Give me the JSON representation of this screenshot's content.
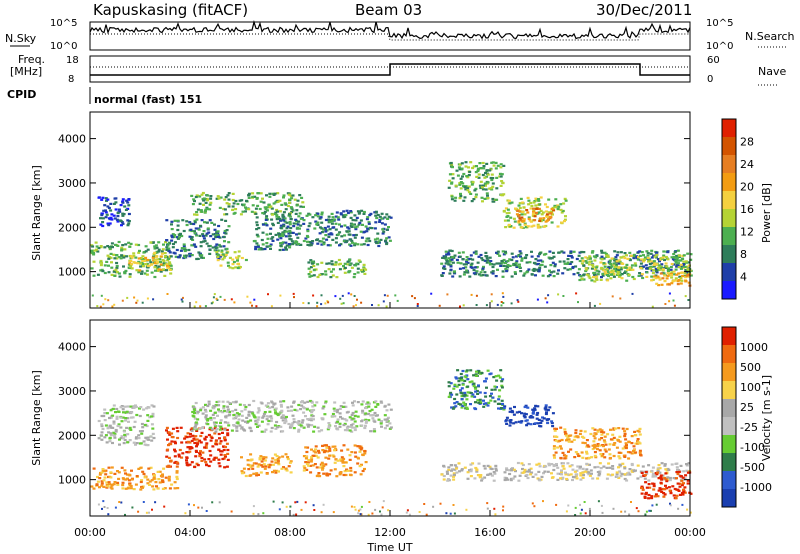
{
  "header": {
    "station": "Kapuskasing (fitACF)",
    "beam": "Beam 03",
    "date": "30/Dec/2011"
  },
  "top_panels": {
    "nsky_label": "N.Sky",
    "nsearch_label": "N.Search",
    "noise_ticks": [
      "10^5",
      "10^0"
    ],
    "freq_label": "Freq.",
    "freq_unit": "[MHz]",
    "freq_ticks": [
      "18",
      "8"
    ],
    "nave_label": "Nave",
    "nave_ticks": [
      "60",
      "0"
    ],
    "cpid_label": "CPID",
    "cpid_value": "normal (fast) 151"
  },
  "colors": {
    "power_scale": [
      "#1a1aff",
      "#1f3fa8",
      "#2e7d5a",
      "#4caf50",
      "#b5d334",
      "#f4d03f",
      "#f39c12",
      "#e67e22",
      "#d35400",
      "#e02000"
    ],
    "velocity_scale": [
      "#1a3fb0",
      "#2e5bd0",
      "#2f7d4a",
      "#66cc33",
      "#c0c0c0",
      "#a8a8a8",
      "#f7d24a",
      "#f59a1e",
      "#ef6a10",
      "#e02000"
    ]
  },
  "chart_data": [
    {
      "type": "heatmap",
      "name": "power",
      "ylabel": "Slant Range [km]",
      "ylim": [
        180,
        4600
      ],
      "yticks": [
        "1000",
        "2000",
        "3000",
        "4000"
      ],
      "colorbar_label": "Power [dB]",
      "colorbar_ticks": [
        "4",
        "8",
        "12",
        "16",
        "20",
        "24",
        "28"
      ],
      "colorbar_range": [
        0,
        32
      ],
      "xlim": [
        0,
        24
      ],
      "regions": [
        {
          "x": [
            0,
            3.2
          ],
          "y": [
            900,
            1700
          ],
          "level": 3
        },
        {
          "x": [
            0.3,
            1.6
          ],
          "y": [
            2000,
            2700
          ],
          "level": 1
        },
        {
          "x": [
            1.5,
            3.2
          ],
          "y": [
            1050,
            1450
          ],
          "level": 5
        },
        {
          "x": [
            3.0,
            5.5
          ],
          "y": [
            1300,
            2200
          ],
          "level": 2
        },
        {
          "x": [
            4.0,
            8.5
          ],
          "y": [
            2300,
            2800
          ],
          "level": 3
        },
        {
          "x": [
            5.0,
            6.2
          ],
          "y": [
            1100,
            1500
          ],
          "level": 4
        },
        {
          "x": [
            6.5,
            8.0
          ],
          "y": [
            1500,
            2300
          ],
          "level": 2
        },
        {
          "x": [
            7.5,
            12.0
          ],
          "y": [
            1600,
            2400
          ],
          "level": 2
        },
        {
          "x": [
            8.5,
            11.0
          ],
          "y": [
            900,
            1300
          ],
          "level": 3
        },
        {
          "x": [
            14.3,
            16.5
          ],
          "y": [
            2600,
            3500
          ],
          "level": 3
        },
        {
          "x": [
            14.0,
            24.0
          ],
          "y": [
            900,
            1500
          ],
          "level": 2
        },
        {
          "x": [
            16.5,
            19.0
          ],
          "y": [
            2000,
            2700
          ],
          "level": 4
        },
        {
          "x": [
            17.0,
            18.5
          ],
          "y": [
            2150,
            2450
          ],
          "level": 7
        },
        {
          "x": [
            19.5,
            24.0
          ],
          "y": [
            800,
            1400
          ],
          "level": 4
        },
        {
          "x": [
            22.5,
            24.0
          ],
          "y": [
            700,
            1000
          ],
          "level": 6
        }
      ]
    },
    {
      "type": "heatmap",
      "name": "velocity",
      "ylabel": "Slant Range [km]",
      "xlabel": "Time UT",
      "ylim": [
        180,
        4600
      ],
      "yticks": [
        "1000",
        "2000",
        "3000",
        "4000"
      ],
      "xticks": [
        "00:00",
        "04:00",
        "08:00",
        "12:00",
        "16:00",
        "20:00",
        "00:00"
      ],
      "colorbar_label": "Velocity [m s-1]",
      "colorbar_ticks": [
        "1000",
        "500",
        "100",
        "25",
        "-25",
        "-100",
        "-500",
        "-1000"
      ],
      "regions": [
        {
          "x": [
            0,
            3.5
          ],
          "y": [
            800,
            1300
          ],
          "level": 7
        },
        {
          "x": [
            0.3,
            2.5
          ],
          "y": [
            1800,
            2700
          ],
          "level": 4
        },
        {
          "x": [
            3.0,
            5.5
          ],
          "y": [
            1300,
            2200
          ],
          "level": 9
        },
        {
          "x": [
            4.0,
            12.0
          ],
          "y": [
            2100,
            2800
          ],
          "level": 4
        },
        {
          "x": [
            6.0,
            8.0
          ],
          "y": [
            1100,
            1600
          ],
          "level": 7
        },
        {
          "x": [
            8.5,
            11.0
          ],
          "y": [
            1100,
            1800
          ],
          "level": 7
        },
        {
          "x": [
            14.3,
            16.5
          ],
          "y": [
            2600,
            3500
          ],
          "level": 2
        },
        {
          "x": [
            16.5,
            18.5
          ],
          "y": [
            2200,
            2700
          ],
          "level": 0
        },
        {
          "x": [
            14.0,
            24.0
          ],
          "y": [
            1000,
            1400
          ],
          "level": 5
        },
        {
          "x": [
            18.5,
            22.0
          ],
          "y": [
            1500,
            2200
          ],
          "level": 7
        },
        {
          "x": [
            22.0,
            24.0
          ],
          "y": [
            600,
            1200
          ],
          "level": 9
        }
      ]
    }
  ]
}
